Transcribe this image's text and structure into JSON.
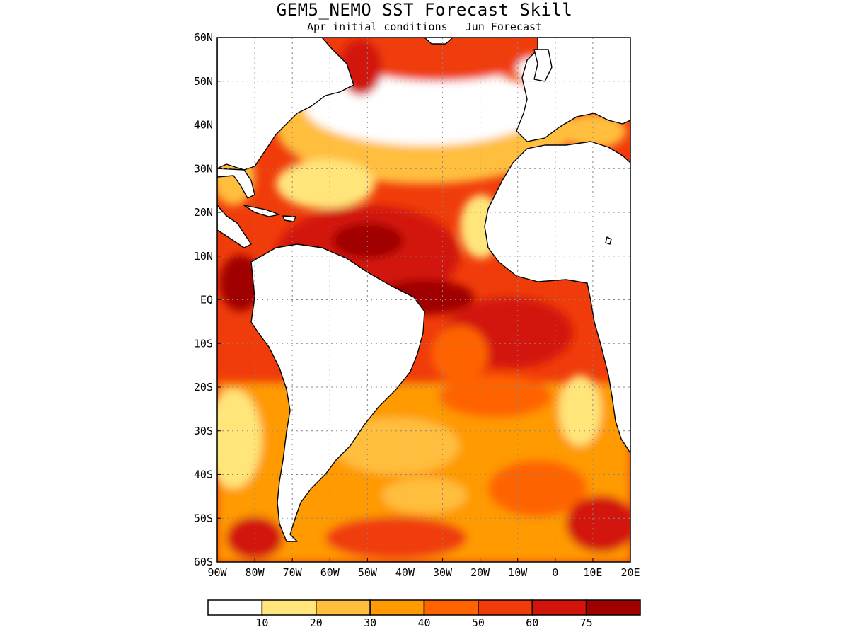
{
  "title": "GEM5_NEMO SST Forecast Skill",
  "subtitle_left": "Apr initial conditions",
  "subtitle_right": "Jun Forecast",
  "map": {
    "lon_range": [
      -90,
      20
    ],
    "lat_range": [
      -60,
      60
    ],
    "lat_ticks": [
      "60N",
      "50N",
      "40N",
      "30N",
      "20N",
      "10N",
      "EQ",
      "10S",
      "20S",
      "30S",
      "40S",
      "50S",
      "60S"
    ],
    "lon_ticks": [
      "90W",
      "80W",
      "70W",
      "60W",
      "50W",
      "40W",
      "30W",
      "20W",
      "10W",
      "0",
      "10E",
      "20E"
    ],
    "grid": "dotted"
  },
  "colorbar": {
    "levels": [
      "10",
      "20",
      "30",
      "40",
      "50",
      "60",
      "75"
    ],
    "colors": [
      "#ffffff",
      "#ffe57a",
      "#ffbe3c",
      "#ff9a00",
      "#ff6400",
      "#f03c0a",
      "#d2140a",
      "#a00000"
    ]
  }
}
